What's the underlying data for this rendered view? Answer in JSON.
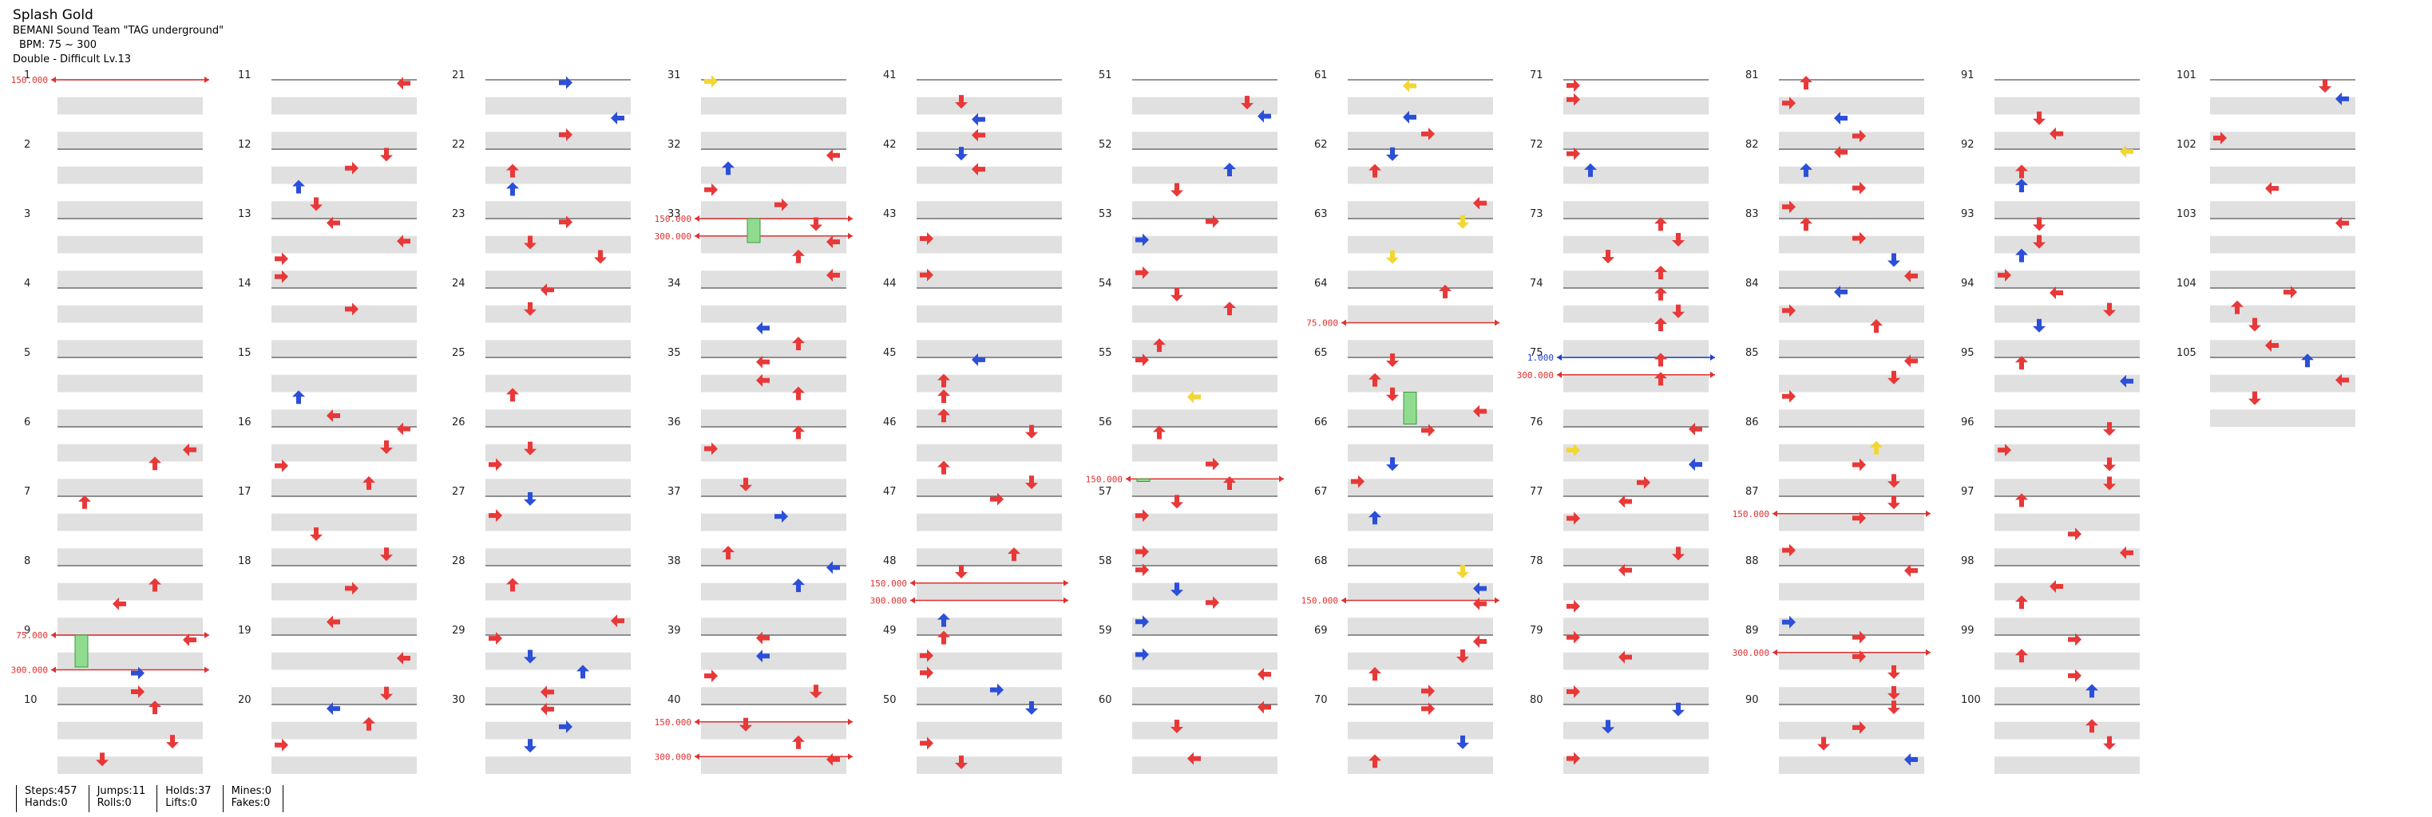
{
  "song": {
    "title": "Splash Gold",
    "artist": "BEMANI Sound Team \"TAG underground\"",
    "bpm": "BPM: 75 ~ 300",
    "difficulty": "Double - Difficult Lv.13"
  },
  "measures": [
    "1",
    "2",
    "3",
    "4",
    "5",
    "6",
    "7",
    "8",
    "9",
    "10",
    "11",
    "12",
    "13",
    "14",
    "15",
    "16",
    "17",
    "18",
    "19",
    "20",
    "21",
    "22",
    "23",
    "24",
    "25",
    "26",
    "27",
    "28",
    "29",
    "30",
    "31",
    "32",
    "33",
    "34",
    "35",
    "36",
    "37",
    "38",
    "39",
    "40",
    "41",
    "42",
    "43",
    "44",
    "45",
    "46",
    "47",
    "48",
    "49",
    "50",
    "51",
    "52",
    "53",
    "54",
    "55",
    "56",
    "57",
    "58",
    "59",
    "60",
    "61",
    "62",
    "63",
    "64",
    "65",
    "66",
    "67",
    "68",
    "69",
    "70",
    "71",
    "72",
    "73",
    "74",
    "75",
    "76",
    "77",
    "78",
    "79",
    "80",
    "81",
    "82",
    "83",
    "84",
    "85",
    "86",
    "87",
    "88",
    "89",
    "90",
    "91",
    "92",
    "93",
    "94",
    "95",
    "96",
    "97",
    "98",
    "99",
    "100",
    "101",
    "102",
    "103",
    "104",
    "105"
  ],
  "markers": [
    {
      "measure": 1,
      "label": "150.000",
      "color": "#e03030"
    },
    {
      "measure": 9,
      "label": "75.000",
      "color": "#e03030"
    },
    {
      "measure": 9.5,
      "label": "300.000",
      "color": "#e03030"
    },
    {
      "measure": 33,
      "label": "150.000",
      "color": "#e03030"
    },
    {
      "measure": 33.25,
      "label": "300.000",
      "color": "#e03030"
    },
    {
      "measure": 40.25,
      "label": "150.000",
      "color": "#e03030"
    },
    {
      "measure": 40.75,
      "label": "300.000",
      "color": "#e03030"
    },
    {
      "measure": 48.25,
      "label": "150.000",
      "color": "#e03030"
    },
    {
      "measure": 48.5,
      "label": "300.000",
      "color": "#e03030"
    },
    {
      "measure": 56.75,
      "label": "150.000",
      "color": "#e03030"
    },
    {
      "measure": 64.5,
      "label": "75.000",
      "color": "#e03030"
    },
    {
      "measure": 68.5,
      "label": "150.000",
      "color": "#e03030"
    },
    {
      "measure": 75,
      "label": "1.000",
      "color": "#2040d0"
    },
    {
      "measure": 75.25,
      "label": "300.000",
      "color": "#e03030"
    },
    {
      "measure": 87.25,
      "label": "150.000",
      "color": "#e03030"
    },
    {
      "measure": 89.25,
      "label": "300.000",
      "color": "#e03030"
    }
  ],
  "stats": [
    {
      "top": "Steps:457",
      "bottom": "Hands:0"
    },
    {
      "top": "Jumps:11",
      "bottom": "Rolls:0"
    },
    {
      "top": "Holds:37",
      "bottom": "Lifts:0"
    },
    {
      "top": "Mines:0",
      "bottom": "Fakes:0"
    }
  ],
  "colors": {
    "arrow_red": "#e83838",
    "arrow_blue": "#2b4fd8",
    "arrow_yellow": "#f2d634",
    "hold_green": "#8fdc8f",
    "beat_band": "#e0e0e0"
  }
}
